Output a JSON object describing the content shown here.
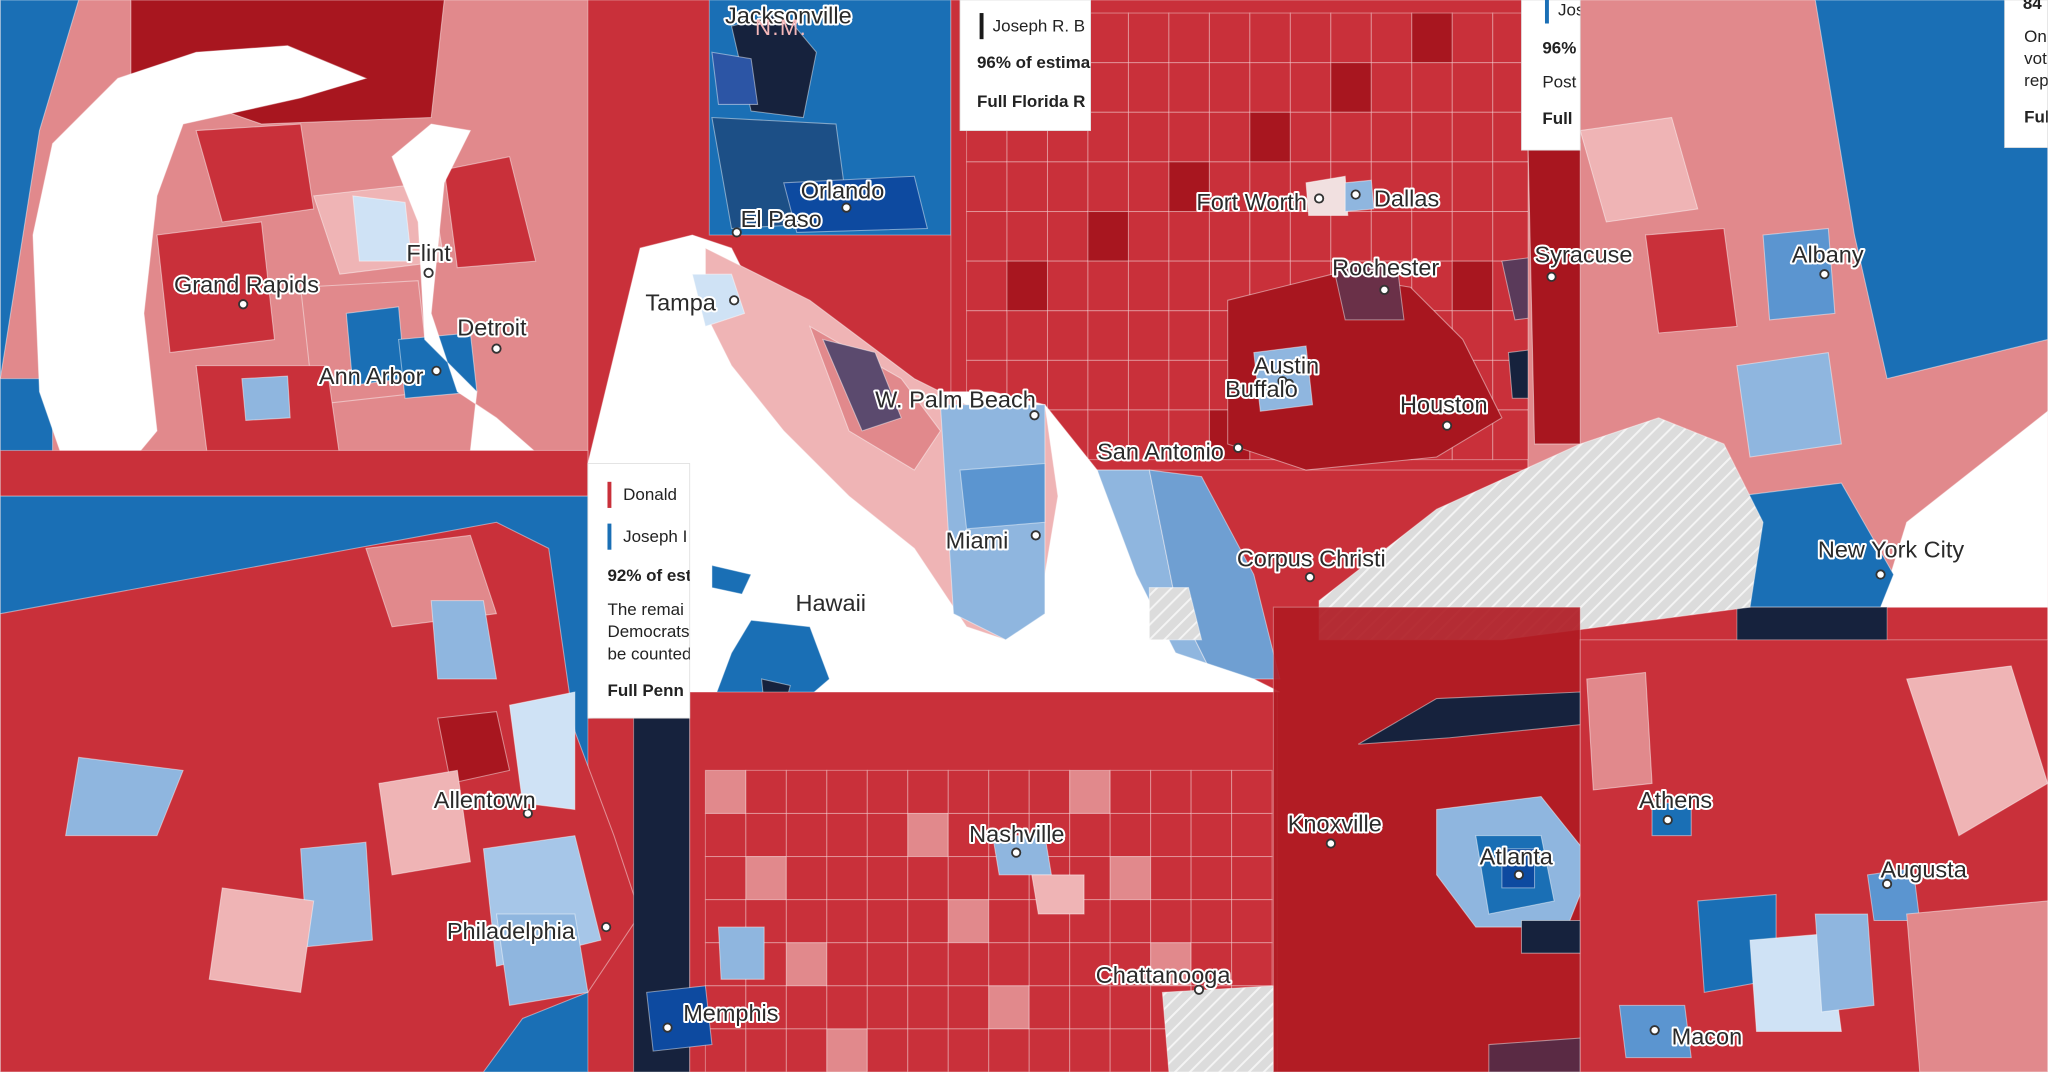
{
  "state_label": "N.M.",
  "cities": [
    "Jacksonville",
    "Orlando",
    "El Paso",
    "Tampa",
    "W. Palm Beach",
    "Miami",
    "Hawaii",
    "Fort Worth",
    "Dallas",
    "Rochester",
    "Syracuse",
    "Albany",
    "Austin",
    "Buffalo",
    "Houston",
    "San Antonio",
    "Corpus Christi",
    "New York City",
    "Grand Rapids",
    "Flint",
    "Detroit",
    "Ann Arbor",
    "Allentown",
    "Philadelphia",
    "Nashville",
    "Memphis",
    "Knoxville",
    "Chattanooga",
    "Atlanta",
    "Athens",
    "Augusta",
    "Macon"
  ],
  "popups": [
    {
      "lines": [
        "Joseph R. B",
        "96% of estima",
        "Full Florida R"
      ]
    },
    {
      "lines": [
        "Jos",
        "96%",
        "Post",
        "Full"
      ]
    },
    {
      "lines": [
        "84",
        "On",
        "vot",
        "rep",
        "Ful"
      ]
    },
    {
      "lines": [
        "Donald",
        "Joseph I",
        "92% of est",
        "The remai",
        "Democrats",
        "be counted",
        "Full Penn"
      ]
    }
  ]
}
